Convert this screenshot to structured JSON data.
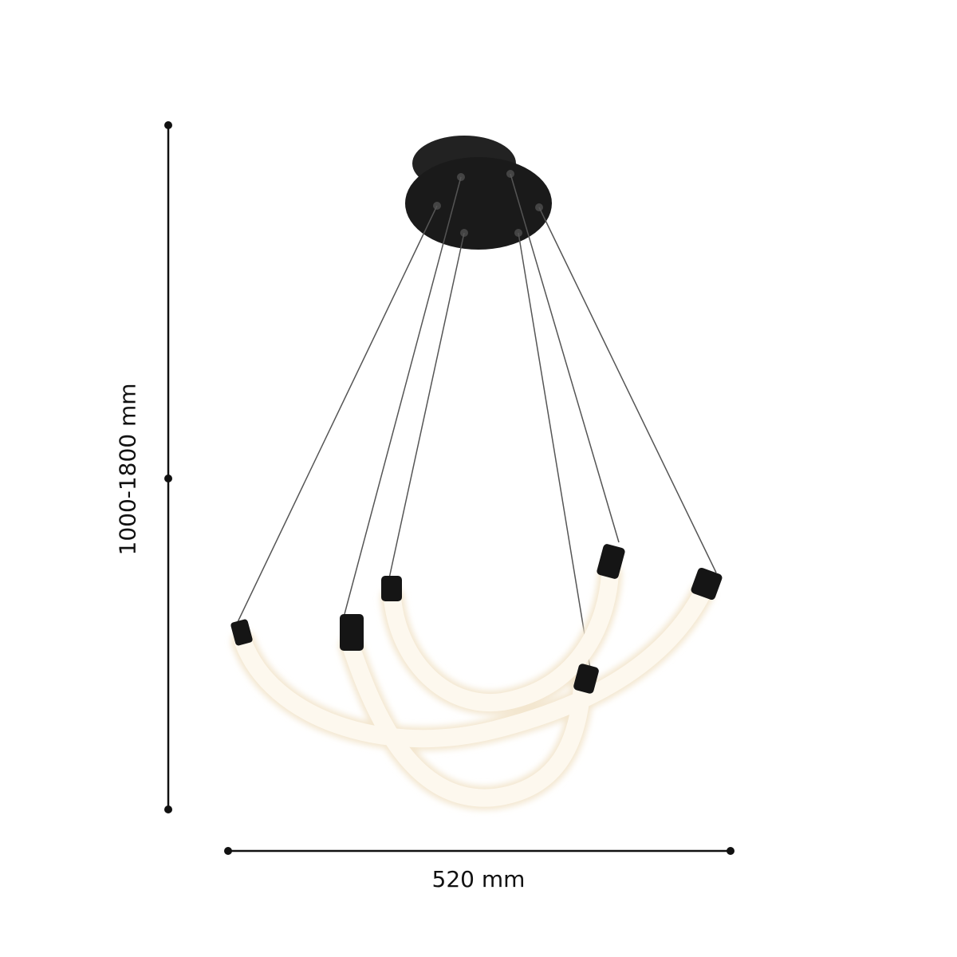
{
  "dimensions": {
    "height_label": "1000-1800 mm",
    "width_label": "520 mm"
  },
  "colors": {
    "line": "#111111",
    "canopy": "#1a1a1a",
    "tube": "#fbf4e6",
    "glow": "#fff8e8"
  }
}
